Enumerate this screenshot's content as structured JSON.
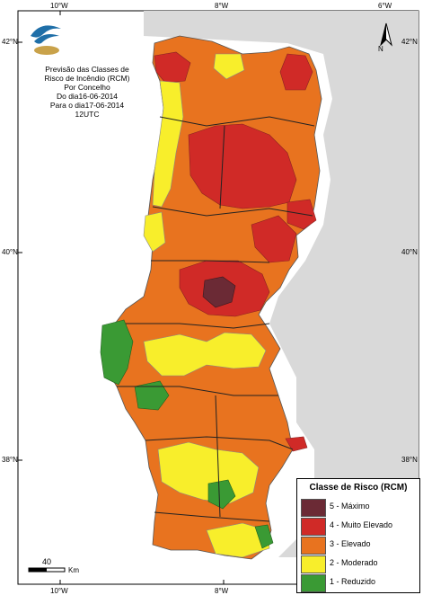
{
  "title_lines": [
    "Previsão das Classes de",
    "Risco de Incêndio (RCM)",
    "Por Concelho",
    "Do dia16-06-2014",
    "Para o dia17-06-2014",
    "12UTC"
  ],
  "axes": {
    "lon_labels": [
      "10°W",
      "8°W",
      "6°W"
    ],
    "lat_labels": [
      "42°N",
      "40°N",
      "38°N"
    ]
  },
  "north_arrow": {
    "label": "N",
    "icon": "north-arrow-icon"
  },
  "scale": {
    "value": "40",
    "unit": "Km"
  },
  "legend": {
    "title": "Classe de Risco (RCM)",
    "items": [
      {
        "label": "5 - Máximo",
        "color": "#6b2a35"
      },
      {
        "label": "4 - Muito Elevado",
        "color": "#d02a27"
      },
      {
        "label": "3 - Elevado",
        "color": "#e8731f"
      },
      {
        "label": "2 - Moderado",
        "color": "#f8ee2b"
      },
      {
        "label": "1 - Reduzido",
        "color": "#3a9a34"
      }
    ]
  },
  "colors": {
    "land": "#d9d9d9",
    "sea": "#ffffff",
    "border": "#555555",
    "logo_blue": "#1f6fa8",
    "logo_gold": "#c9a24a"
  }
}
